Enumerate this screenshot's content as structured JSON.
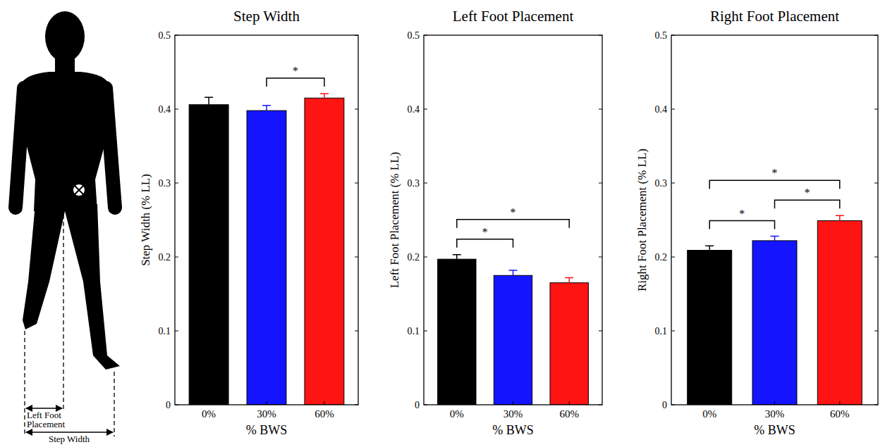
{
  "figure": {
    "left_foot_label": "Left Foot Placement",
    "step_width_label": "Step Width"
  },
  "chart_data": [
    {
      "type": "bar",
      "title": "Step Width",
      "y_label": "Step Width (% LL)",
      "x_label": "% BWS",
      "categories": [
        "0%",
        "30%",
        "60%"
      ],
      "values": [
        0.406,
        0.398,
        0.415
      ],
      "errors": [
        0.01,
        0.007,
        0.006
      ],
      "colors": [
        "#000000",
        "#1414ff",
        "#ff1414"
      ],
      "ylim": [
        0,
        0.5
      ],
      "yticks": [
        0,
        0.1,
        0.2,
        0.3,
        0.4,
        0.5
      ],
      "significance": [
        {
          "from": "30%",
          "to": "60%",
          "text": "*"
        }
      ]
    },
    {
      "type": "bar",
      "title": "Left Foot Placement",
      "y_label": "Left Foot Placement (% LL)",
      "x_label": "% BWS",
      "categories": [
        "0%",
        "30%",
        "60%"
      ],
      "values": [
        0.197,
        0.175,
        0.165
      ],
      "errors": [
        0.006,
        0.007,
        0.007
      ],
      "colors": [
        "#000000",
        "#1414ff",
        "#ff1414"
      ],
      "ylim": [
        0,
        0.5
      ],
      "yticks": [
        0,
        0.1,
        0.2,
        0.3,
        0.4,
        0.5
      ],
      "significance": [
        {
          "from": "0%",
          "to": "30%",
          "text": "*"
        },
        {
          "from": "0%",
          "to": "60%",
          "text": "*"
        }
      ]
    },
    {
      "type": "bar",
      "title": "Right Foot Placement",
      "y_label": "Right Foot Placement (% LL)",
      "x_label": "% BWS",
      "categories": [
        "0%",
        "30%",
        "60%"
      ],
      "values": [
        0.209,
        0.222,
        0.249
      ],
      "errors": [
        0.006,
        0.006,
        0.007
      ],
      "colors": [
        "#000000",
        "#1414ff",
        "#ff1414"
      ],
      "ylim": [
        0,
        0.5
      ],
      "yticks": [
        0,
        0.1,
        0.2,
        0.3,
        0.4,
        0.5
      ],
      "significance": [
        {
          "from": "0%",
          "to": "30%",
          "text": "*"
        },
        {
          "from": "30%",
          "to": "60%",
          "text": "*"
        },
        {
          "from": "0%",
          "to": "60%",
          "text": "*"
        }
      ]
    }
  ]
}
